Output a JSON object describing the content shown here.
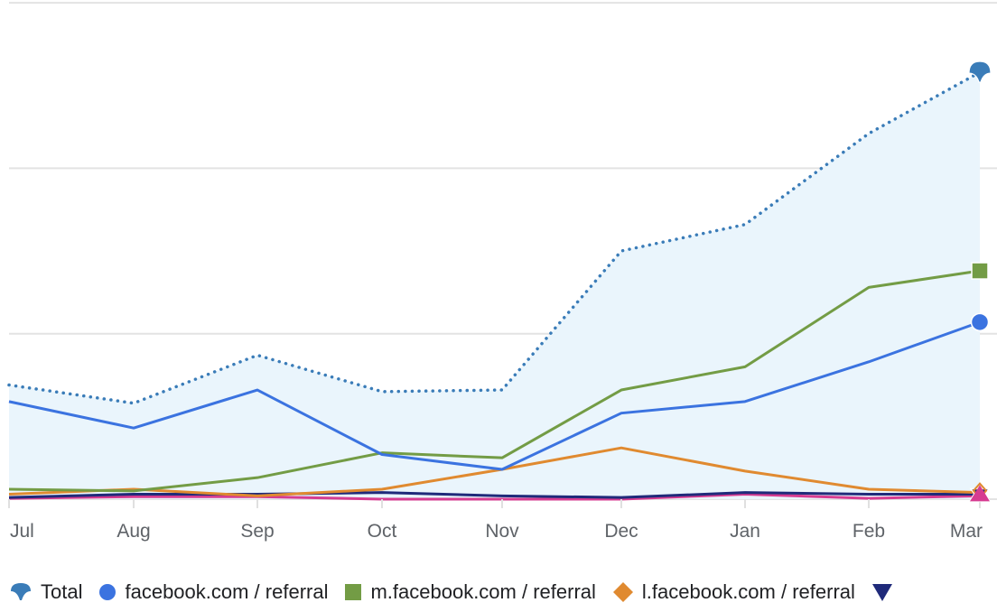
{
  "chart_data": {
    "type": "line",
    "title": "",
    "xlabel": "",
    "ylabel": "",
    "grid": true,
    "y_axis_labels_visible": false,
    "y_units": "normalized (1.0 = one gridline interval; absolute values not shown)",
    "ylim": [
      0,
      3
    ],
    "legend_position": "bottom",
    "categories": [
      "Jul",
      "Aug",
      "Sep",
      "Oct",
      "Nov",
      "Dec",
      "Jan",
      "Feb",
      "Mar"
    ],
    "series": [
      {
        "name": "Total",
        "color": "#3a7cb8",
        "style": "dotted",
        "area_fill": "#eaf5fc",
        "marker": "shell",
        "values": [
          0.69,
          0.58,
          0.87,
          0.65,
          0.66,
          1.5,
          1.66,
          2.21,
          2.58
        ]
      },
      {
        "name": "facebook.com / referral",
        "color": "#3b73e0",
        "style": "solid",
        "marker": "circle",
        "values": [
          0.59,
          0.43,
          0.66,
          0.27,
          0.18,
          0.52,
          0.59,
          0.83,
          1.07
        ]
      },
      {
        "name": "m.facebook.com / referral",
        "color": "#739c45",
        "style": "solid",
        "marker": "square",
        "values": [
          0.06,
          0.05,
          0.13,
          0.28,
          0.25,
          0.66,
          0.8,
          1.28,
          1.38
        ]
      },
      {
        "name": "l.facebook.com / referral",
        "color": "#e08a30",
        "style": "solid",
        "marker": "diamond",
        "values": [
          0.03,
          0.06,
          0.02,
          0.06,
          0.18,
          0.31,
          0.17,
          0.06,
          0.04
        ]
      },
      {
        "name": "(series 5, legend truncated)",
        "color": "#1f2a7a",
        "style": "solid",
        "marker": "triangle-down",
        "values": [
          0.01,
          0.03,
          0.03,
          0.04,
          0.02,
          0.01,
          0.04,
          0.03,
          0.03
        ]
      },
      {
        "name": "(series 6, not in visible legend)",
        "color": "#d63c91",
        "style": "solid",
        "marker": "triangle-up",
        "values": [
          0.005,
          0.015,
          0.015,
          0.0,
          0.0,
          0.0,
          0.03,
          0.005,
          0.02
        ]
      }
    ]
  },
  "legend": {
    "items": [
      {
        "label": "Total",
        "icon": "shell-icon",
        "color": "#3a7cb8"
      },
      {
        "label": "facebook.com / referral",
        "icon": "circle-icon",
        "color": "#3b73e0"
      },
      {
        "label": "m.facebook.com / referral",
        "icon": "square-icon",
        "color": "#739c45"
      },
      {
        "label": "l.facebook.com / referral",
        "icon": "diamond-icon",
        "color": "#e08a30"
      },
      {
        "label": "",
        "icon": "triangle-down-icon",
        "color": "#1f2a7a"
      }
    ]
  },
  "colors": {
    "gridline": "#e3e3e3",
    "axis_text": "#5f6368",
    "area_fill": "#eaf5fc"
  }
}
